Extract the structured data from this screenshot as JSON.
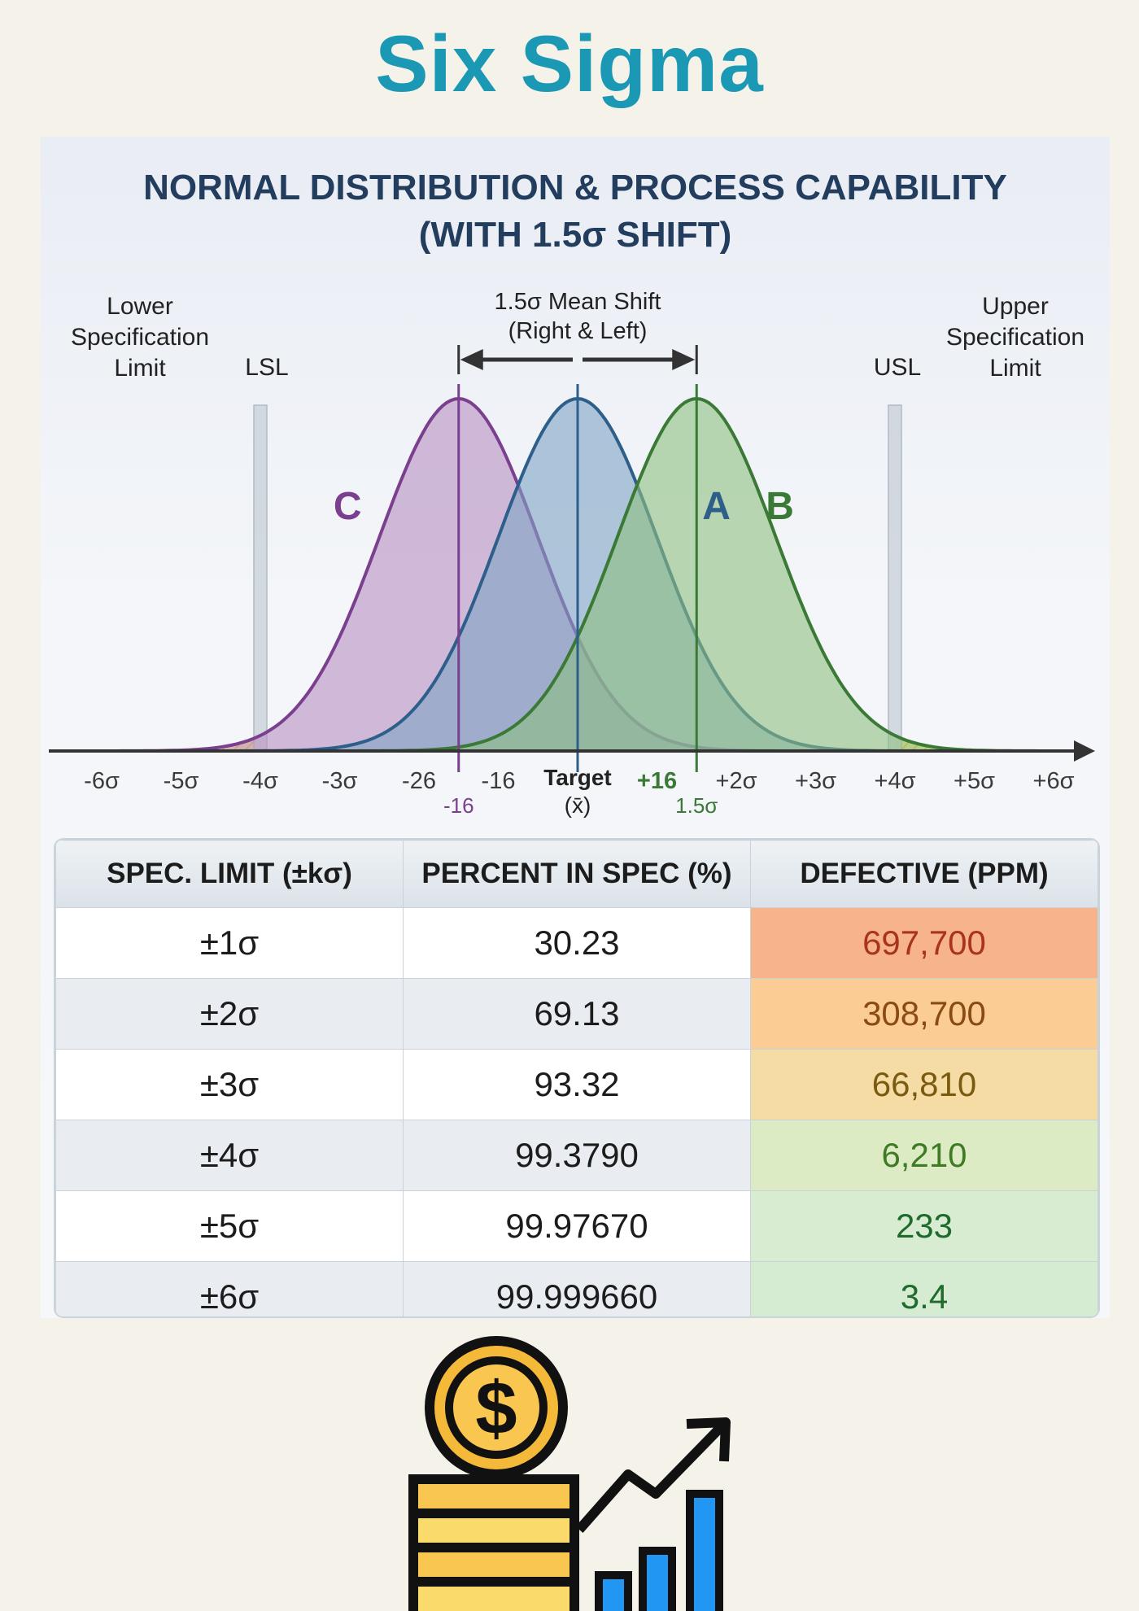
{
  "page_title": "Six Sigma",
  "chart_data": {
    "type": "area",
    "title_line1": "NORMAL DISTRIBUTION & PROCESS CAPABILITY",
    "title_line2": "(WITH 1.5σ SHIFT)",
    "xlim": [
      -6.5,
      6.5
    ],
    "x_ticks": [
      "-6σ",
      "-5σ",
      "-4σ",
      "-3σ",
      "-26",
      "-16",
      "+16",
      "+2σ",
      "+3σ",
      "+4σ",
      "+5σ",
      "+6σ"
    ],
    "x_tick_values": [
      -6,
      -5,
      -4,
      -3,
      -2,
      -1,
      1,
      2,
      3,
      4,
      5,
      6
    ],
    "target_label_line1": "Target",
    "target_label_line2": "(x̄)",
    "shift_label_left": "-16",
    "shift_label_right": "1.5σ",
    "lsl": -4,
    "usl": 4,
    "lsl_label": "LSL",
    "usl_label": "USL",
    "lower_spec_text": [
      "Lower",
      "Specification",
      "Limit"
    ],
    "upper_spec_text": [
      "Upper",
      "Specification",
      "Limit"
    ],
    "mean_shift_text": [
      "1.5σ Mean Shift",
      "(Right & Left)"
    ],
    "series": [
      {
        "name": "C",
        "mean": -1.5,
        "sd": 1,
        "color": "#7a3f8e",
        "fill": "#b78fc2"
      },
      {
        "name": "A",
        "mean": 0,
        "sd": 1,
        "color": "#2e5f8a",
        "fill": "#7fa3c4"
      },
      {
        "name": "B",
        "mean": 1.5,
        "sd": 1,
        "color": "#3a7a36",
        "fill": "#8ebf80"
      }
    ]
  },
  "table": {
    "headers": [
      "SPEC. LIMIT (±kσ)",
      "PERCENT IN SPEC (%)",
      "DEFECTIVE (PPM)"
    ],
    "rows": [
      {
        "limit": "±1σ",
        "percent": "30.23",
        "ppm": "697,700",
        "ppm_color": "#a8341c",
        "ppm_bg": "#f7b38a"
      },
      {
        "limit": "±2σ",
        "percent": "69.13",
        "ppm": "308,700",
        "ppm_color": "#8a4a14",
        "ppm_bg": "#fbcd95"
      },
      {
        "limit": "±3σ",
        "percent": "93.32",
        "ppm": "66,810",
        "ppm_color": "#7a5a10",
        "ppm_bg": "#f4dca4"
      },
      {
        "limit": "±4σ",
        "percent": "99.3790",
        "ppm": "6,210",
        "ppm_color": "#3f7a24",
        "ppm_bg": "#dcebc4"
      },
      {
        "limit": "±5σ",
        "percent": "99.97670",
        "ppm": "233",
        "ppm_color": "#1f6a2c",
        "ppm_bg": "#d8ecd2"
      },
      {
        "limit": "±6σ",
        "percent": "99.999660",
        "ppm": "3.4",
        "ppm_color": "#1f6a2c",
        "ppm_bg": "#d5ebd2"
      }
    ]
  },
  "icon": {
    "name": "coin-stack-growth-icon",
    "symbol": "$"
  }
}
